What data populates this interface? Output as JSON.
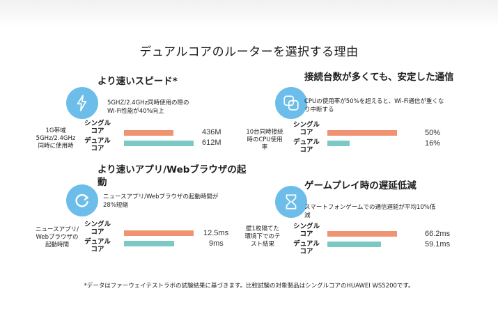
{
  "title": "デュアルコアのルーターを選択する理由",
  "colors": {
    "single": "#f09372",
    "dual": "#7cc8c4",
    "icon_bg": "#6cbde9"
  },
  "legend": {
    "single_line1": "シングル",
    "single_line2": "コア",
    "dual_line1": "デュアル",
    "dual_line2": "コア"
  },
  "panels": [
    {
      "title": "より速いスピード*",
      "icon": "lightning-icon",
      "desc_line1": "5GHZ/2.4GHz同時使用の際の",
      "desc_line2": "Wi-Fi性能が40%向上",
      "row_label_line1": "1G帯域",
      "row_label_line2": "5GHz/2.4GHz",
      "row_label_line3": "同時に使用時",
      "single_value": 436,
      "single_text": "436M",
      "dual_value": 612,
      "dual_text": "612M"
    },
    {
      "title": "接続台数が多くても、安定した通信",
      "icon": "overlapping-squares-icon",
      "desc_line1": "CPUの使用率が50%を超えると、Wi-Fi通信が重くな",
      "desc_line2": "り中断する",
      "row_label_line1": "10台同時接続",
      "row_label_line2": "時のCPU使用",
      "row_label_line3": "率",
      "single_value": 50,
      "single_text": "50%",
      "dual_value": 16,
      "dual_text": "16%"
    },
    {
      "title_line1": "より速いアプリ/Webブラウザの起",
      "title_line2": "動",
      "icon": "refresh-icon",
      "desc_line1": "ニュースアプリ/Webブラウザの起動時間が",
      "desc_line2": "28%短縮",
      "row_label_line1": "ニュースアプリ/",
      "row_label_line2": "Webブラウザの",
      "row_label_line3": "起動時間",
      "single_value": 12.5,
      "single_text": "12.5ms",
      "dual_value": 9,
      "dual_text": "9ms"
    },
    {
      "title": "ゲームプレイ時の遅延低減",
      "icon": "hourglass-icon",
      "desc_line1": "スマートフォンゲームでの通信遅延が平均10%低",
      "desc_line2": "減",
      "row_label_line1": "壁1枚隔てた",
      "row_label_line2": "環境下でのテ",
      "row_label_line3": "スト結果",
      "single_value": 66.2,
      "single_text": "66.2ms",
      "dual_value": 59.1,
      "dual_text": "59.1ms",
      "dual_display_ratio": 0.77
    }
  ],
  "footnote": "*データはファーウェイテストラボの試験結果に基づきます。比較試験の対象製品はシングルコアのHUAWEI WS5200です。"
}
